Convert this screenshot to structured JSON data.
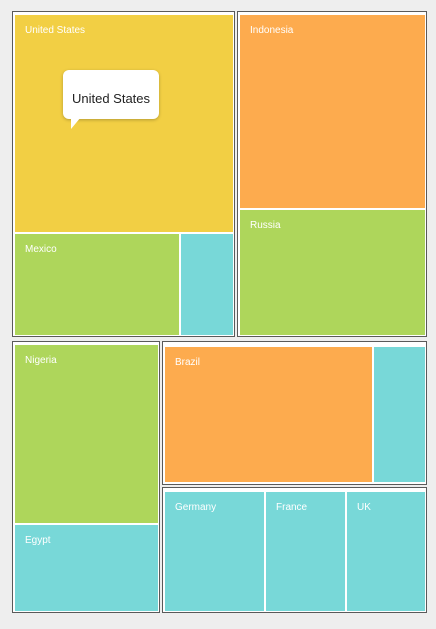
{
  "colors": {
    "yellow": "#f2cf44",
    "orange": "#fdab4e",
    "green": "#aed65b",
    "teal": "#78d8d8",
    "border": "#5a5a5a"
  },
  "treemap": {
    "labels": {
      "united_states": "United States",
      "mexico": "Mexico",
      "indonesia": "Indonesia",
      "russia": "Russia",
      "nigeria": "Nigeria",
      "egypt": "Egypt",
      "brazil": "Brazil",
      "germany": "Germany",
      "france": "France",
      "uk": "UK"
    }
  },
  "tooltip": {
    "text": "United States"
  }
}
